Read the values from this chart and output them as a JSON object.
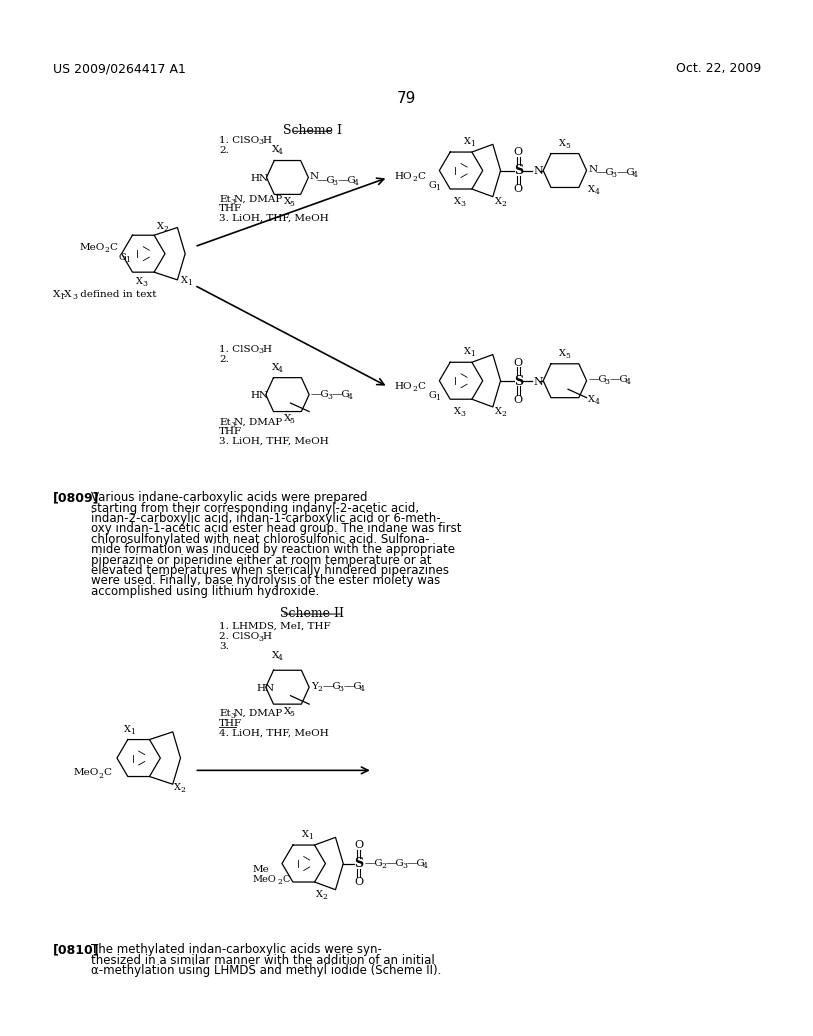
{
  "page_number": "79",
  "header_left": "US 2009/0264417 A1",
  "header_right": "Oct. 22, 2009",
  "background_color": "#ffffff",
  "text_color": "#000000",
  "paragraph_0809_label": "[0809]",
  "paragraph_0810_label": "[0810]",
  "lines_0809": [
    "Various indane-carboxylic acids were prepared",
    "starting from their corresponding indanyl-2-acetic acid,",
    "indan-2-carboxylic acid, indan-1-carboxylic acid or 6-meth-",
    "oxy indan-1-acetic acid ester head group. The indane was first",
    "chlorosulfonylated with neat chlorosulfonic acid. Sulfona-",
    "mide formation was induced by reaction with the appropriate",
    "piperazine or piperidine either at room temperature or at",
    "elevated temperatures when sterically hindered piperazines",
    "were used. Finally, base hydrolysis of the ester moiety was",
    "accomplished using lithium hydroxide."
  ],
  "lines_0810": [
    "The methylated indan-carboxylic acids were syn-",
    "thesized in a similar manner with the addition of an initial",
    "α-methylation using LHMDS and methyl iodide (Scheme II)."
  ]
}
